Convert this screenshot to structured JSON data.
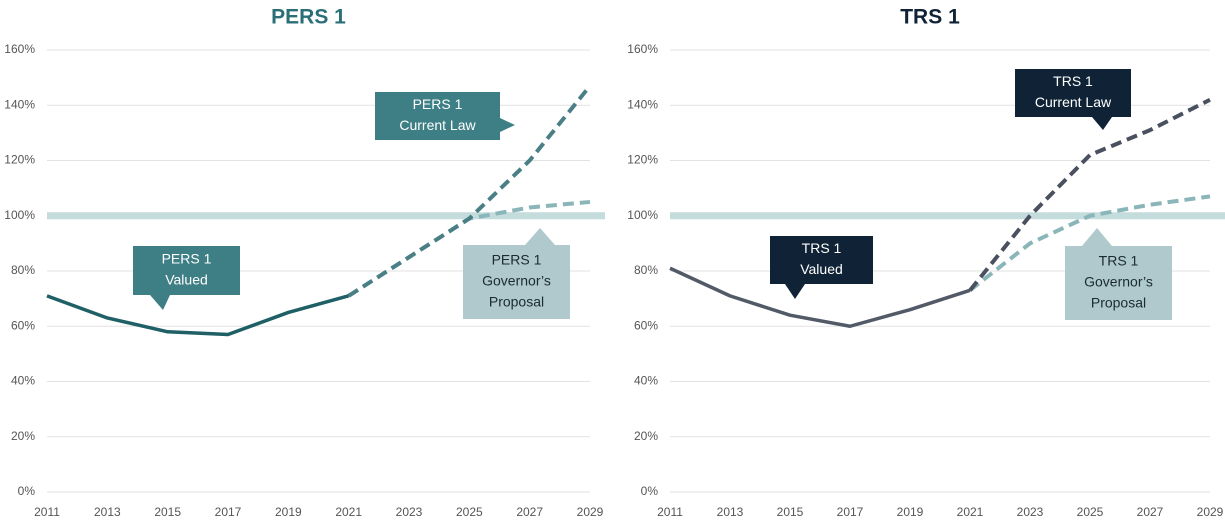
{
  "chart_data": [
    {
      "type": "line",
      "title": "PERS 1",
      "title_color": "#2a6f77",
      "x": [
        2011,
        2013,
        2015,
        2017,
        2019,
        2021,
        2023,
        2025,
        2027,
        2029
      ],
      "xlim": [
        2011,
        2029
      ],
      "xticks": [
        2011,
        2013,
        2015,
        2017,
        2019,
        2021,
        2023,
        2025,
        2027,
        2029
      ],
      "ylim": [
        0,
        160
      ],
      "yticks": [
        {
          "value": 0,
          "label": "0%"
        },
        {
          "value": 20,
          "label": "20%"
        },
        {
          "value": 40,
          "label": "40%"
        },
        {
          "value": 60,
          "label": "60%"
        },
        {
          "value": 80,
          "label": "80%"
        },
        {
          "value": 100,
          "label": "100%"
        },
        {
          "value": 120,
          "label": "120%"
        },
        {
          "value": 140,
          "label": "140%"
        },
        {
          "value": 160,
          "label": "160%"
        }
      ],
      "grid": true,
      "reference_line": 100,
      "reference_color": "#c5dcdc",
      "series": [
        {
          "label": [
            "PERS 1",
            "Valued"
          ],
          "color": "#1f5f66",
          "dashed": false,
          "label_fill": "#3e7f86",
          "label_text_color": "#ffffff",
          "values": [
            71,
            63,
            58,
            57,
            65,
            71,
            null,
            null,
            null,
            null
          ]
        },
        {
          "label": [
            "PERS 1",
            "Current Law"
          ],
          "color": "#4a7f86",
          "dashed": true,
          "label_fill": "#3e7f86",
          "label_text_color": "#ffffff",
          "values": [
            null,
            null,
            null,
            null,
            null,
            71,
            85,
            99,
            120,
            147
          ]
        },
        {
          "label": [
            "PERS 1",
            "Governor’s",
            "Proposal"
          ],
          "color": "#8ab6b9",
          "dashed": true,
          "label_fill": "#b0c9cc",
          "label_text_color": "#1a2a33",
          "values": [
            null,
            null,
            null,
            null,
            null,
            71,
            85,
            99,
            103,
            105
          ]
        }
      ]
    },
    {
      "type": "line",
      "title": "TRS 1",
      "title_color": "#0f2236",
      "x": [
        2011,
        2013,
        2015,
        2017,
        2019,
        2021,
        2023,
        2025,
        2027,
        2029
      ],
      "xlim": [
        2011,
        2029
      ],
      "xticks": [
        2011,
        2013,
        2015,
        2017,
        2019,
        2021,
        2023,
        2025,
        2027,
        2029
      ],
      "ylim": [
        0,
        160
      ],
      "yticks": [
        {
          "value": 0,
          "label": "0%"
        },
        {
          "value": 20,
          "label": "20%"
        },
        {
          "value": 40,
          "label": "40%"
        },
        {
          "value": 60,
          "label": "60%"
        },
        {
          "value": 80,
          "label": "80%"
        },
        {
          "value": 100,
          "label": "100%"
        },
        {
          "value": 120,
          "label": "120%"
        },
        {
          "value": 140,
          "label": "140%"
        },
        {
          "value": 160,
          "label": "160%"
        }
      ],
      "grid": true,
      "reference_line": 100,
      "reference_color": "#c5dcdc",
      "series": [
        {
          "label": [
            "TRS 1",
            "Valued"
          ],
          "color": "#525a68",
          "dashed": false,
          "label_fill": "#0f2236",
          "label_text_color": "#ffffff",
          "values": [
            81,
            71,
            64,
            60,
            66,
            73,
            null,
            null,
            null,
            null
          ]
        },
        {
          "label": [
            "TRS 1",
            "Current Law"
          ],
          "color": "#4a5060",
          "dashed": true,
          "label_fill": "#0f2236",
          "label_text_color": "#ffffff",
          "values": [
            null,
            null,
            null,
            null,
            null,
            73,
            100,
            122,
            131,
            142
          ]
        },
        {
          "label": [
            "TRS 1",
            "Governor’s",
            "Proposal"
          ],
          "color": "#8ab6b9",
          "dashed": true,
          "label_fill": "#b0c9cc",
          "label_text_color": "#1a2a33",
          "values": [
            null,
            null,
            null,
            null,
            null,
            73,
            90,
            100,
            104,
            107
          ]
        }
      ]
    }
  ]
}
